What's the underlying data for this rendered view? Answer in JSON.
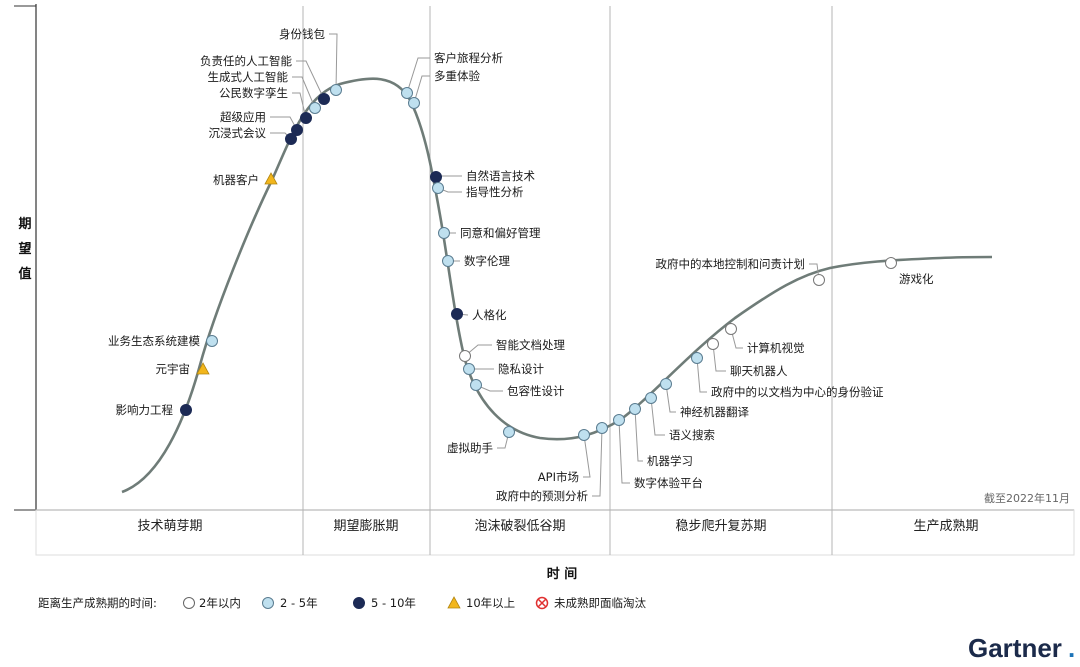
{
  "chart_data": {
    "type": "hype_cycle",
    "title": "",
    "ylabel": "期望值",
    "xlabel": "时间",
    "as_of": "截至2022年11月",
    "phases": [
      "技术萌芽期",
      "期望膨胀期",
      "泡沫破裂低谷期",
      "稳步爬升复苏期",
      "生产成熟期"
    ],
    "legend": {
      "title": "距离生产成熟期的时间:",
      "items": [
        {
          "marker": "open",
          "label": "2年以内"
        },
        {
          "marker": "light",
          "label": "2 - 5年"
        },
        {
          "marker": "dark",
          "label": "5 - 10年"
        },
        {
          "marker": "triangle",
          "label": "10年以上"
        },
        {
          "marker": "obsolete",
          "label": "未成熟即面临淘汰"
        }
      ]
    },
    "colors": {
      "curve": "#6f7c78",
      "open": "#ffffff",
      "light": "#bfe0ef",
      "dark": "#1c2a55",
      "triangle": "#f2b61c",
      "obsolete": "#e03030"
    },
    "technologies": [
      {
        "name": "影响力工程",
        "marker": "dark"
      },
      {
        "name": "元宇宙",
        "marker": "triangle"
      },
      {
        "name": "业务生态系统建模",
        "marker": "light"
      },
      {
        "name": "机器客户",
        "marker": "triangle"
      },
      {
        "name": "沉浸式会议",
        "marker": "dark"
      },
      {
        "name": "超级应用",
        "marker": "dark"
      },
      {
        "name": "公民数字孪生",
        "marker": "dark"
      },
      {
        "name": "生成式人工智能",
        "marker": "light"
      },
      {
        "name": "负责任的人工智能",
        "marker": "dark"
      },
      {
        "name": "身份钱包",
        "marker": "light"
      },
      {
        "name": "客户旅程分析",
        "marker": "light"
      },
      {
        "name": "多重体验",
        "marker": "light"
      },
      {
        "name": "自然语言技术",
        "marker": "dark"
      },
      {
        "name": "指导性分析",
        "marker": "light"
      },
      {
        "name": "同意和偏好管理",
        "marker": "light"
      },
      {
        "name": "数字伦理",
        "marker": "light"
      },
      {
        "name": "人格化",
        "marker": "dark"
      },
      {
        "name": "智能文档处理",
        "marker": "open"
      },
      {
        "name": "隐私设计",
        "marker": "light"
      },
      {
        "name": "包容性设计",
        "marker": "light"
      },
      {
        "name": "虚拟助手",
        "marker": "light"
      },
      {
        "name": "API市场",
        "marker": "light"
      },
      {
        "name": "政府中的预测分析",
        "marker": "light"
      },
      {
        "name": "数字体验平台",
        "marker": "light"
      },
      {
        "name": "机器学习",
        "marker": "light"
      },
      {
        "name": "语义搜索",
        "marker": "light"
      },
      {
        "name": "神经机器翻译",
        "marker": "light"
      },
      {
        "name": "政府中的以文档为中心的身份验证",
        "marker": "light"
      },
      {
        "name": "聊天机器人",
        "marker": "open"
      },
      {
        "name": "计算机视觉",
        "marker": "open"
      },
      {
        "name": "政府中的本地控制和问责计划",
        "marker": "open"
      },
      {
        "name": "游戏化",
        "marker": "open"
      }
    ]
  },
  "brand": {
    "name": "Gartner",
    "dot": "."
  }
}
